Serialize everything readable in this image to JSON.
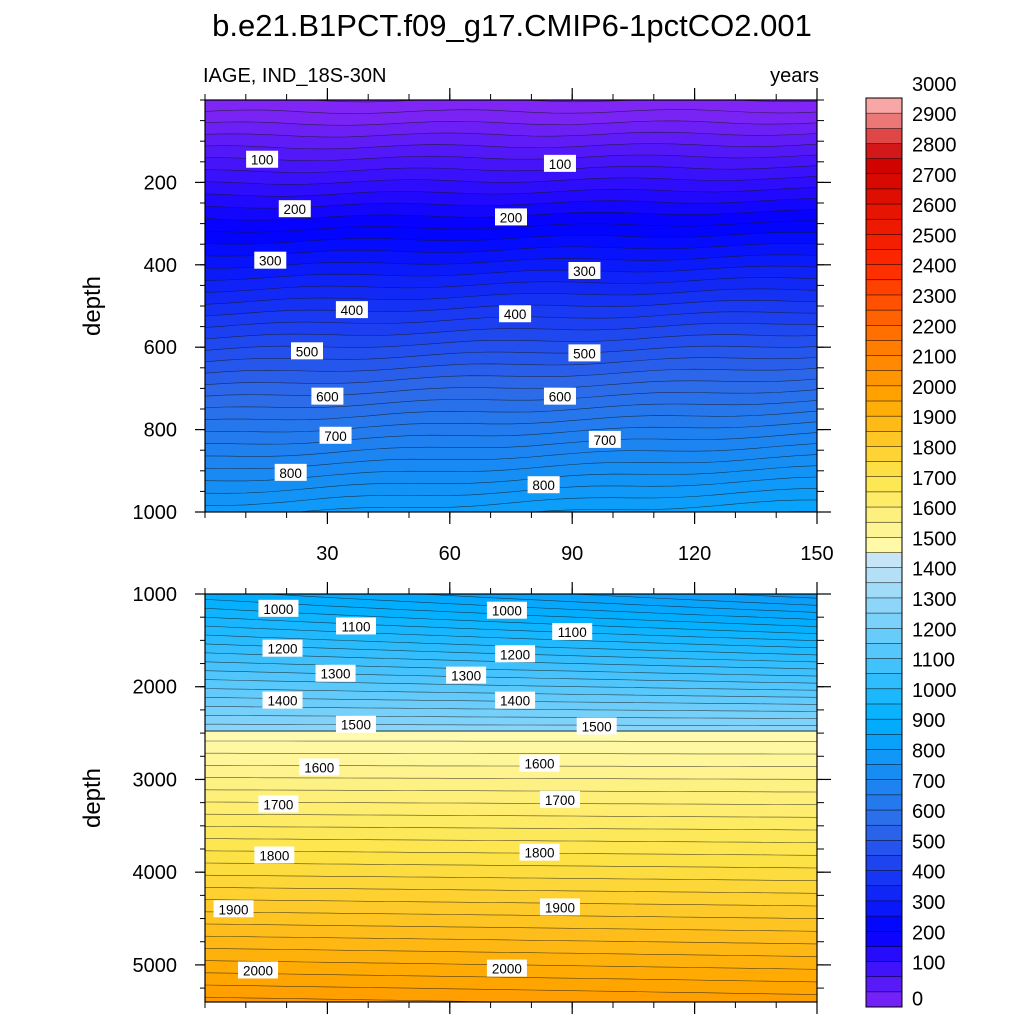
{
  "chart_data": [
    {
      "type": "contour",
      "title": "b.e21.B1PCT.f09_g17.CMIP6-1pctCO2.001",
      "left_string": "IAGE, IND_18S-30N",
      "right_string": "years",
      "xlabel": "",
      "ylabel": "depth",
      "xlim": [
        0,
        150
      ],
      "ylim": [
        1000,
        0
      ],
      "x_ticks": [
        30,
        60,
        90,
        120,
        150
      ],
      "x_tick_labels": [
        "30",
        "60",
        "90",
        "120",
        "150"
      ],
      "y_ticks": [
        200,
        400,
        600,
        800,
        1000
      ],
      "y_tick_labels": [
        "200",
        "400",
        "600",
        "800",
        "1000"
      ],
      "contour_interval": 100,
      "contour_labels": [
        {
          "text": "100",
          "x": 14,
          "depth": 145
        },
        {
          "text": "100",
          "x": 87,
          "depth": 155
        },
        {
          "text": "200",
          "x": 22,
          "depth": 265
        },
        {
          "text": "200",
          "x": 75,
          "depth": 285
        },
        {
          "text": "300",
          "x": 16,
          "depth": 390
        },
        {
          "text": "300",
          "x": 93,
          "depth": 415
        },
        {
          "text": "400",
          "x": 36,
          "depth": 510
        },
        {
          "text": "400",
          "x": 76,
          "depth": 520
        },
        {
          "text": "500",
          "x": 25,
          "depth": 610
        },
        {
          "text": "500",
          "x": 93,
          "depth": 615
        },
        {
          "text": "600",
          "x": 30,
          "depth": 720
        },
        {
          "text": "600",
          "x": 87,
          "depth": 720
        },
        {
          "text": "700",
          "x": 32,
          "depth": 815
        },
        {
          "text": "700",
          "x": 98,
          "depth": 825
        },
        {
          "text": "800",
          "x": 21,
          "depth": 905
        },
        {
          "text": "800",
          "x": 83,
          "depth": 935
        }
      ]
    },
    {
      "type": "contour",
      "xlabel": "",
      "ylabel": "depth",
      "xlim": [
        0,
        150
      ],
      "ylim": [
        5400,
        1000
      ],
      "y_ticks": [
        1000,
        2000,
        3000,
        4000,
        5000
      ],
      "y_tick_labels": [
        "1000",
        "2000",
        "3000",
        "4000",
        "5000"
      ],
      "contour_interval": 50,
      "contour_labels": [
        {
          "text": "1000",
          "x": 18,
          "depth": 1160
        },
        {
          "text": "1000",
          "x": 74,
          "depth": 1180
        },
        {
          "text": "1100",
          "x": 37,
          "depth": 1350
        },
        {
          "text": "1100",
          "x": 90,
          "depth": 1410
        },
        {
          "text": "1200",
          "x": 19,
          "depth": 1590
        },
        {
          "text": "1200",
          "x": 76,
          "depth": 1650
        },
        {
          "text": "1300",
          "x": 32,
          "depth": 1860
        },
        {
          "text": "1300",
          "x": 64,
          "depth": 1880
        },
        {
          "text": "1400",
          "x": 19,
          "depth": 2150
        },
        {
          "text": "1400",
          "x": 76,
          "depth": 2150
        },
        {
          "text": "1500",
          "x": 37,
          "depth": 2410
        },
        {
          "text": "1500",
          "x": 96,
          "depth": 2430
        },
        {
          "text": "1600",
          "x": 28,
          "depth": 2870
        },
        {
          "text": "1600",
          "x": 82,
          "depth": 2830
        },
        {
          "text": "1700",
          "x": 18,
          "depth": 3270
        },
        {
          "text": "1700",
          "x": 87,
          "depth": 3220
        },
        {
          "text": "1800",
          "x": 17,
          "depth": 3820
        },
        {
          "text": "1800",
          "x": 82,
          "depth": 3790
        },
        {
          "text": "1900",
          "x": 7,
          "depth": 4400
        },
        {
          "text": "1900",
          "x": 87,
          "depth": 4380
        },
        {
          "text": "2000",
          "x": 13,
          "depth": 5060
        },
        {
          "text": "2000",
          "x": 74,
          "depth": 5040
        }
      ]
    },
    {
      "type": "colorbar",
      "min": 0,
      "max": 3000,
      "step": 50,
      "labels": [
        "3000",
        "2900",
        "2800",
        "2700",
        "2600",
        "2500",
        "2400",
        "2300",
        "2200",
        "2100",
        "2000",
        "1900",
        "1800",
        "1700",
        "1600",
        "1500",
        "1400",
        "1300",
        "1200",
        "1100",
        "1000",
        "900",
        "800",
        "700",
        "600",
        "500",
        "400",
        "300",
        "200",
        "100",
        "0"
      ],
      "stops": [
        {
          "value": 0,
          "color": "#7f25f5"
        },
        {
          "value": 250,
          "color": "#0000ff"
        },
        {
          "value": 600,
          "color": "#2e6ae8"
        },
        {
          "value": 950,
          "color": "#00b0ff"
        },
        {
          "value": 1500,
          "color": "#cfe8f6"
        },
        {
          "value": 1501,
          "color": "#fffbb2"
        },
        {
          "value": 1750,
          "color": "#fde54a"
        },
        {
          "value": 2000,
          "color": "#ffa800"
        },
        {
          "value": 2250,
          "color": "#ff6a00"
        },
        {
          "value": 2450,
          "color": "#ff2800"
        },
        {
          "value": 2800,
          "color": "#cc0000"
        },
        {
          "value": 3000,
          "color": "#ffbebe"
        }
      ]
    }
  ]
}
